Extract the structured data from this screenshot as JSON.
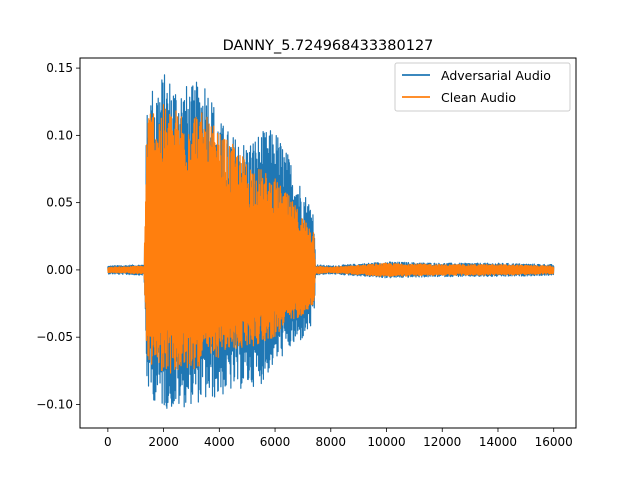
{
  "chart_data": {
    "type": "line",
    "title": "DANNY_5.724968433380127",
    "xlabel": "",
    "ylabel": "",
    "xlim": [
      -1000,
      16800
    ],
    "ylim": [
      -0.1175,
      0.1575
    ],
    "xticks": [
      0,
      2000,
      4000,
      6000,
      8000,
      10000,
      12000,
      14000,
      16000
    ],
    "xtick_labels": [
      "0",
      "2000",
      "4000",
      "6000",
      "8000",
      "10000",
      "12000",
      "14000",
      "16000"
    ],
    "yticks": [
      -0.1,
      -0.05,
      0.0,
      0.05,
      0.1,
      0.15
    ],
    "ytick_labels": [
      "−0.10",
      "−0.05",
      "0.00",
      "0.05",
      "0.10",
      "0.15"
    ],
    "grid": false,
    "legend_position": "top-right",
    "series": [
      {
        "name": "Adversarial Audio",
        "color": "#1f77b4",
        "envelope": {
          "x": [
            0,
            1300,
            1400,
            1500,
            2000,
            2500,
            3000,
            3500,
            4000,
            4500,
            5000,
            5500,
            6000,
            6500,
            7000,
            7400,
            7450,
            8000,
            10000,
            12000,
            14000,
            16000
          ],
          "upper": [
            0.003,
            0.004,
            0.125,
            0.135,
            0.147,
            0.14,
            0.137,
            0.145,
            0.112,
            0.1,
            0.095,
            0.103,
            0.105,
            0.085,
            0.06,
            0.045,
            0.004,
            0.003,
            0.006,
            0.005,
            0.005,
            0.004
          ],
          "lower": [
            -0.003,
            -0.004,
            -0.085,
            -0.095,
            -0.103,
            -0.104,
            -0.1,
            -0.098,
            -0.095,
            -0.09,
            -0.088,
            -0.085,
            -0.07,
            -0.06,
            -0.052,
            -0.04,
            -0.004,
            -0.003,
            -0.006,
            -0.005,
            -0.005,
            -0.004
          ]
        }
      },
      {
        "name": "Clean Audio",
        "color": "#ff7f0e",
        "envelope": {
          "x": [
            0,
            1300,
            1400,
            1500,
            2000,
            2500,
            3000,
            3500,
            4000,
            4500,
            5000,
            5500,
            6000,
            6500,
            7000,
            7400,
            7450,
            8000,
            10000,
            12000,
            14000,
            16000
          ],
          "upper": [
            0.002,
            0.003,
            0.11,
            0.123,
            0.123,
            0.12,
            0.123,
            0.115,
            0.102,
            0.093,
            0.082,
            0.075,
            0.068,
            0.055,
            0.04,
            0.03,
            0.003,
            0.002,
            0.005,
            0.004,
            0.004,
            0.003
          ],
          "lower": [
            -0.002,
            -0.003,
            -0.065,
            -0.07,
            -0.076,
            -0.078,
            -0.075,
            -0.07,
            -0.065,
            -0.06,
            -0.058,
            -0.055,
            -0.05,
            -0.04,
            -0.033,
            -0.025,
            -0.003,
            -0.002,
            -0.005,
            -0.004,
            -0.004,
            -0.003
          ]
        }
      }
    ]
  }
}
